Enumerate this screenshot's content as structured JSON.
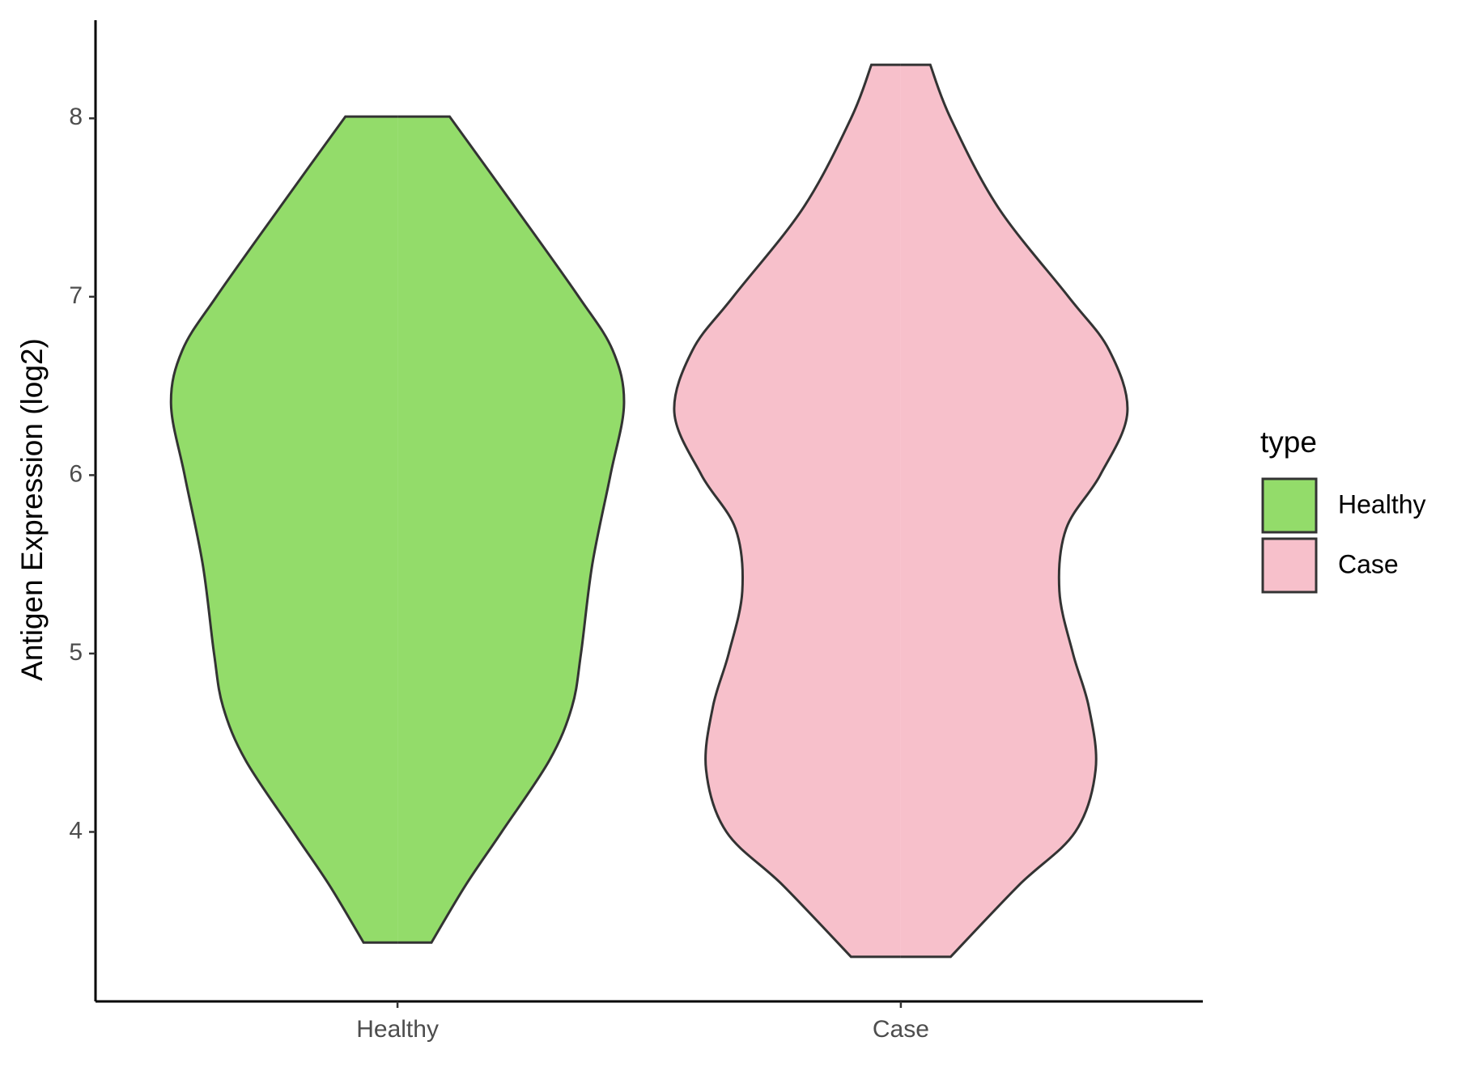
{
  "chart_data": {
    "type": "violin",
    "y_label": "Antigen Expression (log2)",
    "categories": [
      "Healthy",
      "Case"
    ],
    "legend_title": "type",
    "legend": "right",
    "ylim": [
      3.05,
      8.55
    ],
    "yticks": [
      4,
      5,
      6,
      7,
      8
    ],
    "series": [
      {
        "name": "Healthy",
        "color": "#93dc6a",
        "y": [
          8.01,
          7.5,
          7.0,
          6.7,
          6.4,
          6.0,
          5.5,
          5.0,
          4.7,
          4.4,
          4.0,
          3.7,
          3.38
        ],
        "density": [
          0.23,
          0.52,
          0.8,
          0.95,
          1.0,
          0.94,
          0.86,
          0.81,
          0.77,
          0.67,
          0.46,
          0.3,
          0.15
        ]
      },
      {
        "name": "Case",
        "color": "#f7c0cb",
        "y": [
          8.3,
          8.0,
          7.5,
          7.0,
          6.7,
          6.35,
          6.0,
          5.7,
          5.35,
          5.0,
          4.7,
          4.35,
          4.0,
          3.7,
          3.3
        ],
        "density": [
          0.13,
          0.22,
          0.43,
          0.74,
          0.92,
          1.0,
          0.88,
          0.73,
          0.7,
          0.76,
          0.83,
          0.86,
          0.77,
          0.52,
          0.22
        ]
      }
    ]
  }
}
